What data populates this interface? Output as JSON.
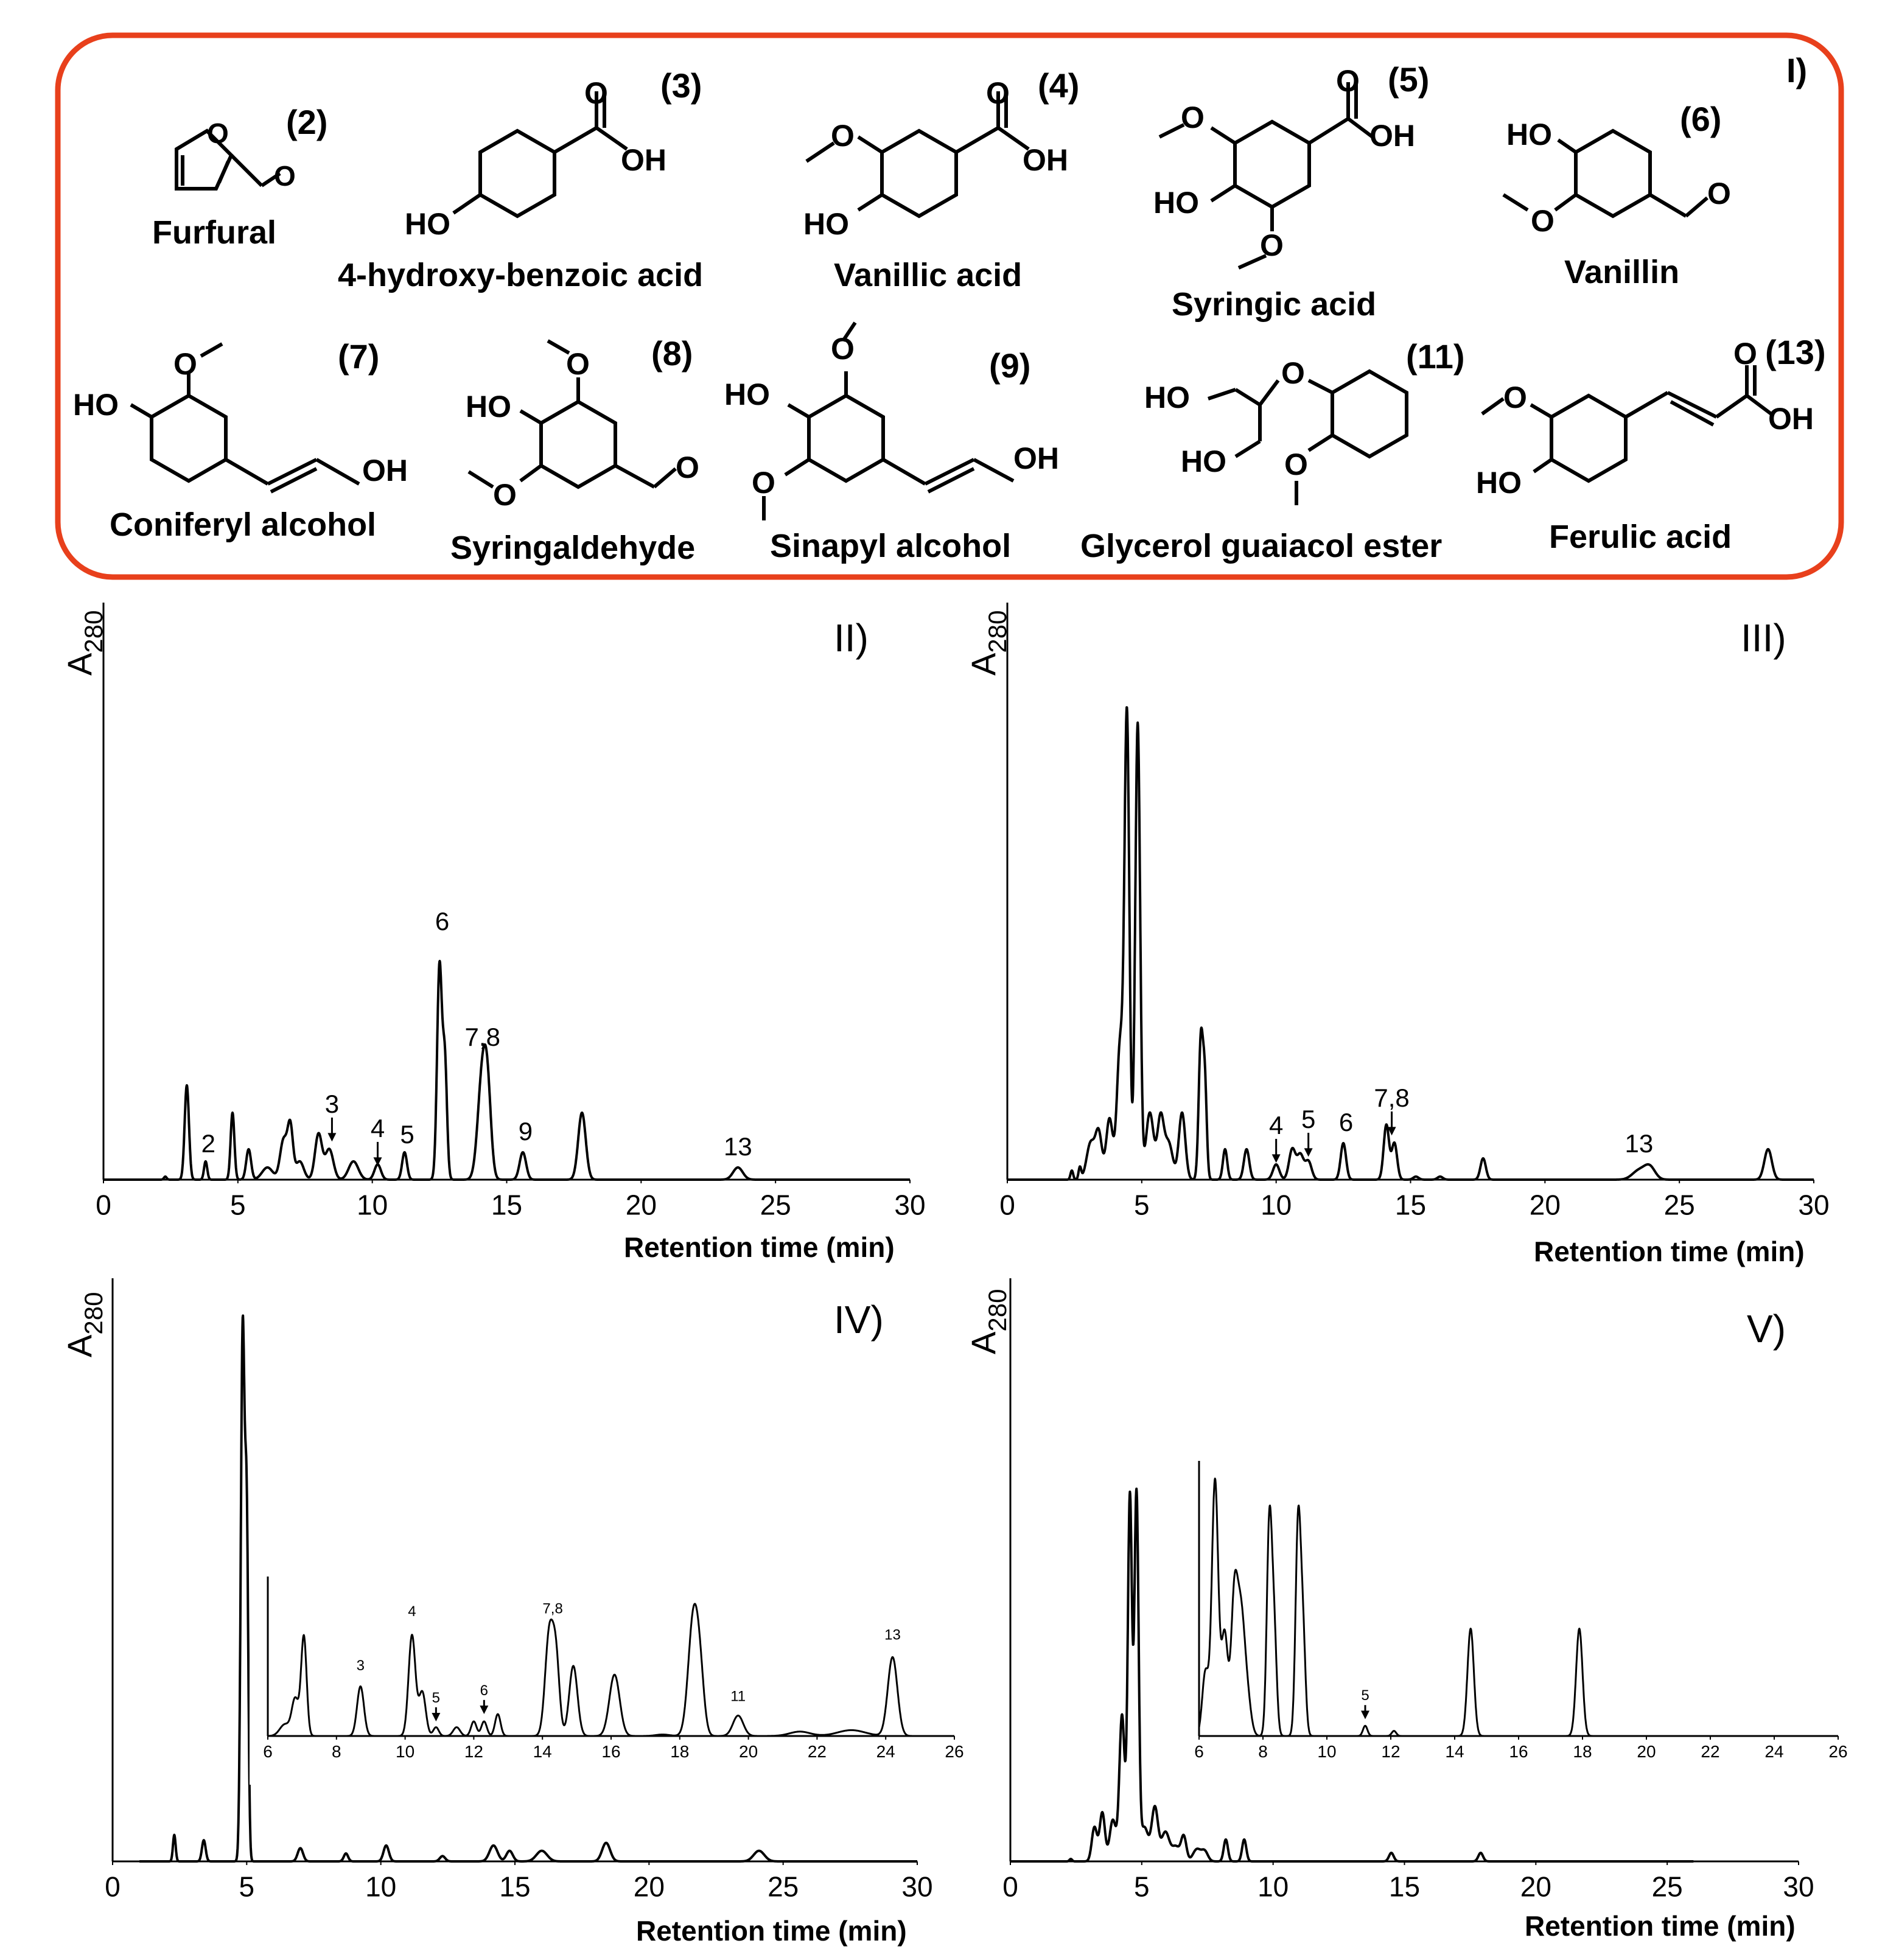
{
  "panel_labels": {
    "structures": "I)",
    "p2": "II)",
    "p3": "III)",
    "p4": "IV)",
    "p5": "V)"
  },
  "ylabel": {
    "base": "A",
    "sub": "280"
  },
  "xlabel": "Retention time (min)",
  "compounds": [
    {
      "num": "(2)",
      "name": "Furfural"
    },
    {
      "num": "(3)",
      "name": "4-hydroxy-benzoic acid"
    },
    {
      "num": "(4)",
      "name": "Vanillic acid"
    },
    {
      "num": "(5)",
      "name": "Syringic acid"
    },
    {
      "num": "(6)",
      "name": "Vanillin"
    },
    {
      "num": "(7)",
      "name": "Coniferyl alcohol"
    },
    {
      "num": "(8)",
      "name": "Syringaldehyde"
    },
    {
      "num": "(9)",
      "name": "Sinapyl alcohol"
    },
    {
      "num": "(11)",
      "name": "Glycerol guaiacol ester"
    },
    {
      "num": "(13)",
      "name": "Ferulic acid"
    }
  ],
  "atoms": {
    "O": "O",
    "OH": "OH",
    "HO": "HO"
  },
  "colors": {
    "frame": "#e8401c",
    "trace": "#000000"
  },
  "chart_data": [
    {
      "type": "line",
      "panel": "II)",
      "xlim": [
        0,
        30
      ],
      "ylim": [
        0,
        100
      ],
      "xticks": [
        0,
        5,
        10,
        15,
        20,
        25,
        30
      ],
      "baseline_range": [
        0,
        30
      ],
      "peaks": [
        [
          2.3,
          1,
          0.05
        ],
        [
          3.1,
          31,
          0.08
        ],
        [
          3.8,
          6,
          0.06
        ],
        [
          4.8,
          22,
          0.07
        ],
        [
          5.4,
          10,
          0.09
        ],
        [
          6.1,
          4,
          0.2
        ],
        [
          6.7,
          13,
          0.13
        ],
        [
          6.95,
          17,
          0.1
        ],
        [
          7.3,
          6,
          0.15
        ],
        [
          8.0,
          15,
          0.13
        ],
        [
          8.4,
          10,
          0.15
        ],
        [
          9.3,
          6,
          0.18
        ],
        [
          10.2,
          5,
          0.12
        ],
        [
          11.2,
          9,
          0.09
        ],
        [
          12.5,
          70,
          0.09
        ],
        [
          12.7,
          38,
          0.08
        ],
        [
          14.1,
          35,
          0.17
        ],
        [
          14.3,
          20,
          0.13
        ],
        [
          15.6,
          9,
          0.12
        ],
        [
          17.8,
          22,
          0.14
        ],
        [
          23.6,
          4,
          0.18
        ]
      ],
      "annotations": [
        {
          "text": "2",
          "x": 3.9,
          "y": 9,
          "arrow": false
        },
        {
          "text": "3",
          "x": 8.5,
          "y": 22,
          "arrow": true
        },
        {
          "text": "4",
          "x": 10.2,
          "y": 14,
          "arrow": true
        },
        {
          "text": "5",
          "x": 11.3,
          "y": 12,
          "arrow": false
        },
        {
          "text": "6",
          "x": 12.6,
          "y": 82,
          "arrow": false
        },
        {
          "text": "7,8",
          "x": 14.1,
          "y": 44,
          "arrow": false
        },
        {
          "text": "9",
          "x": 15.7,
          "y": 13,
          "arrow": false
        },
        {
          "text": "13",
          "x": 23.6,
          "y": 8,
          "arrow": false
        }
      ]
    },
    {
      "type": "line",
      "panel": "III)",
      "xlim": [
        0,
        30
      ],
      "ylim": [
        0,
        100
      ],
      "xticks": [
        0,
        5,
        10,
        15,
        20,
        25,
        30
      ],
      "baseline_range": [
        0,
        30
      ],
      "peaks": [
        [
          2.4,
          3,
          0.05
        ],
        [
          2.7,
          4,
          0.05
        ],
        [
          3.1,
          12,
          0.15
        ],
        [
          3.4,
          15,
          0.12
        ],
        [
          3.8,
          20,
          0.12
        ],
        [
          4.2,
          45,
          0.12
        ],
        [
          4.45,
          150,
          0.09
        ],
        [
          4.85,
          150,
          0.09
        ],
        [
          5.3,
          22,
          0.14
        ],
        [
          5.7,
          20,
          0.12
        ],
        [
          6.0,
          12,
          0.15
        ],
        [
          6.5,
          22,
          0.12
        ],
        [
          7.2,
          46,
          0.08
        ],
        [
          7.35,
          30,
          0.07
        ],
        [
          8.1,
          10,
          0.08
        ],
        [
          8.9,
          10,
          0.1
        ],
        [
          10.0,
          5,
          0.12
        ],
        [
          10.6,
          10,
          0.12
        ],
        [
          10.9,
          8,
          0.12
        ],
        [
          11.2,
          6,
          0.12
        ],
        [
          12.5,
          12,
          0.1
        ],
        [
          14.1,
          18,
          0.1
        ],
        [
          14.4,
          12,
          0.1
        ],
        [
          15.2,
          1,
          0.1
        ],
        [
          16.1,
          1,
          0.1
        ],
        [
          17.7,
          7,
          0.1
        ],
        [
          23.5,
          3,
          0.25
        ],
        [
          23.9,
          4,
          0.2
        ],
        [
          28.3,
          10,
          0.14
        ]
      ],
      "annotations": [
        {
          "text": "4",
          "x": 10.0,
          "y": 15,
          "arrow": true
        },
        {
          "text": "5",
          "x": 11.2,
          "y": 17,
          "arrow": true
        },
        {
          "text": "6",
          "x": 12.6,
          "y": 16,
          "arrow": false
        },
        {
          "text": "7,8",
          "x": 14.3,
          "y": 24,
          "arrow": true
        },
        {
          "text": "13",
          "x": 23.5,
          "y": 9,
          "arrow": false
        }
      ]
    },
    {
      "type": "line",
      "panel": "IV)",
      "xlim": [
        0,
        30
      ],
      "ylim": [
        0,
        100
      ],
      "xticks": [
        0,
        5,
        10,
        15,
        20,
        25,
        30
      ],
      "baseline_range": [
        1,
        30
      ],
      "peaks": [
        [
          2.3,
          5,
          0.05
        ],
        [
          3.4,
          4,
          0.07
        ],
        [
          4.85,
          100,
          0.07
        ],
        [
          5.0,
          62,
          0.06
        ],
        [
          7.0,
          2.5,
          0.1
        ],
        [
          8.7,
          1.5,
          0.08
        ],
        [
          10.2,
          3,
          0.1
        ],
        [
          12.3,
          1,
          0.1
        ],
        [
          14.2,
          3,
          0.15
        ],
        [
          14.8,
          2,
          0.12
        ],
        [
          16.0,
          2,
          0.2
        ],
        [
          18.4,
          3.5,
          0.15
        ],
        [
          24.1,
          2,
          0.2
        ]
      ],
      "annotations": []
    },
    {
      "type": "line",
      "panel": "IV) inset",
      "xlim": [
        6,
        26
      ],
      "ylim": [
        0,
        100
      ],
      "xticks": [
        6,
        8,
        10,
        12,
        14,
        16,
        18,
        20,
        22,
        24,
        26
      ],
      "baseline_range": [
        6,
        26
      ],
      "peaks": [
        [
          6.5,
          8,
          0.15
        ],
        [
          6.8,
          25,
          0.1
        ],
        [
          7.05,
          68,
          0.08
        ],
        [
          8.7,
          34,
          0.1
        ],
        [
          10.2,
          69,
          0.1
        ],
        [
          10.5,
          30,
          0.1
        ],
        [
          10.9,
          6,
          0.08
        ],
        [
          11.5,
          6,
          0.1
        ],
        [
          12.0,
          10,
          0.08
        ],
        [
          12.3,
          10,
          0.08
        ],
        [
          12.7,
          15,
          0.08
        ],
        [
          14.2,
          70,
          0.12
        ],
        [
          14.4,
          48,
          0.1
        ],
        [
          14.9,
          48,
          0.12
        ],
        [
          16.1,
          42,
          0.15
        ],
        [
          17.5,
          1,
          0.2
        ],
        [
          18.4,
          81,
          0.15
        ],
        [
          18.6,
          30,
          0.12
        ],
        [
          19.7,
          14,
          0.15
        ],
        [
          21.5,
          3,
          0.3
        ],
        [
          23.0,
          4,
          0.4
        ],
        [
          24.2,
          54,
          0.14
        ]
      ],
      "annotations": [
        {
          "text": "3",
          "x": 8.7,
          "y": 45,
          "arrow": false
        },
        {
          "text": "4",
          "x": 10.2,
          "y": 82,
          "arrow": false
        },
        {
          "text": "5",
          "x": 10.9,
          "y": 23,
          "arrow": true
        },
        {
          "text": "6",
          "x": 12.3,
          "y": 28,
          "arrow": true
        },
        {
          "text": "7,8",
          "x": 14.3,
          "y": 84,
          "arrow": false
        },
        {
          "text": "11",
          "x": 19.7,
          "y": 24,
          "arrow": false
        },
        {
          "text": "13",
          "x": 24.2,
          "y": 66,
          "arrow": false
        }
      ]
    },
    {
      "type": "line",
      "panel": "V)",
      "xlim": [
        0,
        30
      ],
      "ylim": [
        0,
        100
      ],
      "xticks": [
        0,
        5,
        10,
        15,
        20,
        25,
        30
      ],
      "baseline_range": [
        0,
        26
      ],
      "peaks": [
        [
          2.3,
          1,
          0.05
        ],
        [
          3.2,
          14,
          0.1
        ],
        [
          3.5,
          20,
          0.1
        ],
        [
          3.9,
          17,
          0.12
        ],
        [
          4.25,
          60,
          0.1
        ],
        [
          4.55,
          150,
          0.08
        ],
        [
          4.8,
          150,
          0.08
        ],
        [
          5.1,
          14,
          0.15
        ],
        [
          5.5,
          22,
          0.12
        ],
        [
          5.9,
          12,
          0.15
        ],
        [
          6.3,
          6,
          0.15
        ],
        [
          6.6,
          10,
          0.1
        ],
        [
          7.1,
          5,
          0.15
        ],
        [
          7.4,
          4,
          0.12
        ],
        [
          8.2,
          9,
          0.08
        ],
        [
          8.9,
          9,
          0.08
        ],
        [
          14.5,
          3.5,
          0.09
        ],
        [
          17.9,
          3.5,
          0.09
        ]
      ],
      "annotations": []
    },
    {
      "type": "line",
      "panel": "V) inset",
      "xlim": [
        6,
        26
      ],
      "ylim": [
        0,
        100
      ],
      "xticks": [
        6,
        8,
        10,
        12,
        14,
        16,
        18,
        20,
        22,
        24,
        26
      ],
      "baseline_range": [
        6,
        26
      ],
      "peaks": [
        [
          6.2,
          25,
          0.1
        ],
        [
          6.5,
          100,
          0.1
        ],
        [
          6.8,
          40,
          0.1
        ],
        [
          7.1,
          50,
          0.1
        ],
        [
          7.3,
          45,
          0.12
        ],
        [
          7.5,
          15,
          0.12
        ],
        [
          8.2,
          82,
          0.08
        ],
        [
          8.35,
          40,
          0.08
        ],
        [
          9.1,
          82,
          0.08
        ],
        [
          9.25,
          40,
          0.08
        ],
        [
          11.2,
          4,
          0.07
        ],
        [
          12.1,
          2,
          0.07
        ],
        [
          14.5,
          42,
          0.1
        ],
        [
          17.9,
          42,
          0.1
        ]
      ],
      "annotations": [
        {
          "text": "5",
          "x": 11.2,
          "y": 14,
          "arrow": true
        }
      ]
    }
  ]
}
